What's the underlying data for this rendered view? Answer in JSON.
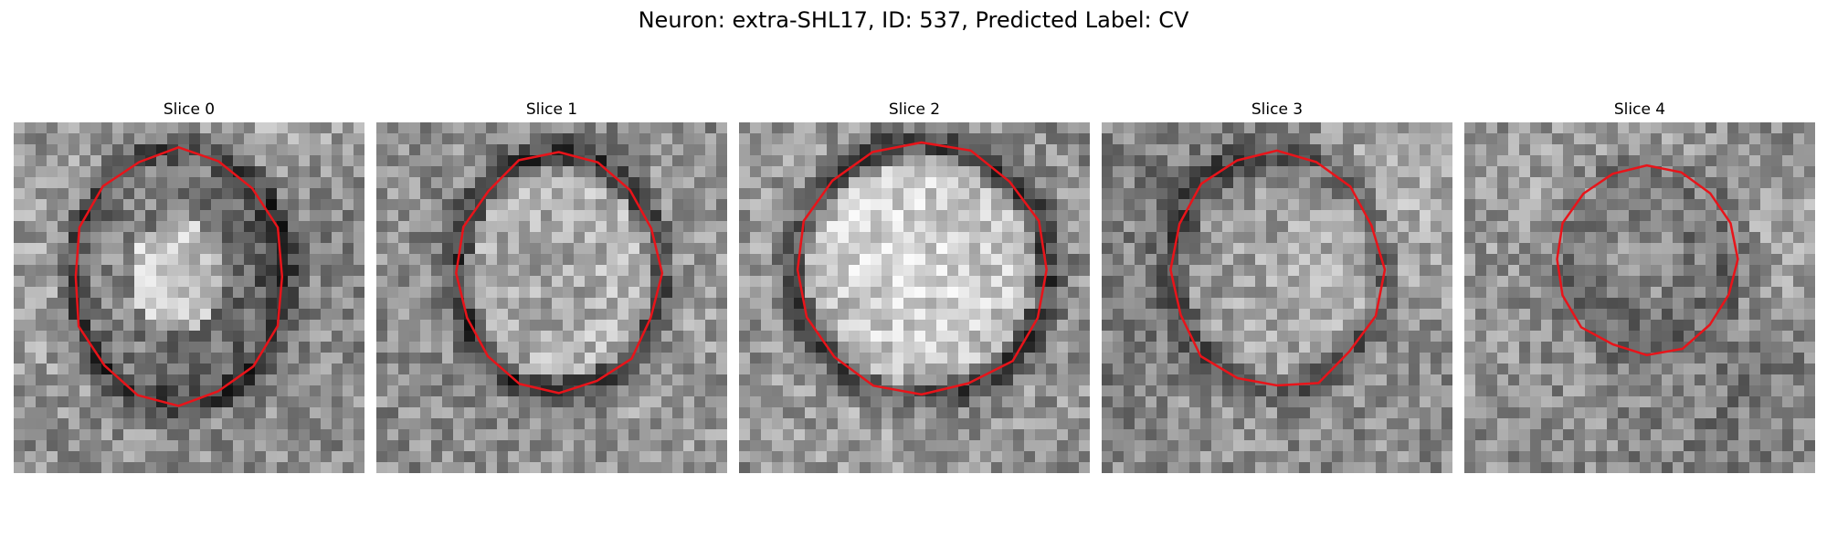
{
  "figure": {
    "title": "Neuron: extra-SHL17, ID: 537, Predicted Label: CV"
  },
  "outline_color": "#e8141a",
  "slices": [
    {
      "title": "Slice 0",
      "center": [
        0.47,
        0.44
      ],
      "radius": [
        0.3,
        0.36
      ],
      "contrast": "dark-ring"
    },
    {
      "title": "Slice 1",
      "center": [
        0.52,
        0.43
      ],
      "radius": [
        0.29,
        0.34
      ],
      "contrast": "light-center"
    },
    {
      "title": "Slice 2",
      "center": [
        0.52,
        0.42
      ],
      "radius": [
        0.36,
        0.36
      ],
      "contrast": "light-center"
    },
    {
      "title": "Slice 3",
      "center": [
        0.5,
        0.42
      ],
      "radius": [
        0.3,
        0.34
      ],
      "contrast": "medium"
    },
    {
      "title": "Slice 4",
      "center": [
        0.52,
        0.39
      ],
      "radius": [
        0.26,
        0.27
      ],
      "contrast": "dark-center"
    }
  ]
}
